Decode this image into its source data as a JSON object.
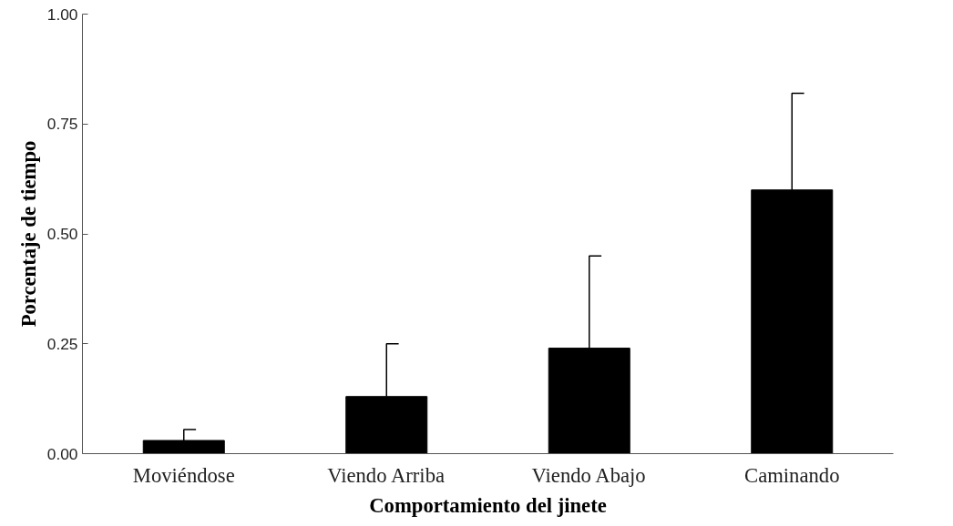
{
  "chart_data": {
    "type": "bar",
    "xlabel": "Comportamiento del jinete",
    "ylabel": "Porcentaje de tiempo",
    "categories": [
      "Moviéndose",
      "Viendo Arriba",
      "Viendo Abajo",
      "Caminando"
    ],
    "values": [
      0.03,
      0.13,
      0.24,
      0.6
    ],
    "errors": [
      [
        0.03,
        0.055
      ],
      [
        0.13,
        0.25
      ],
      [
        0.24,
        0.45
      ],
      [
        0.6,
        0.82
      ]
    ],
    "color": "#000000",
    "ylim": [
      0,
      1
    ],
    "yticks": [
      {
        "value": 0,
        "label": "0.00"
      },
      {
        "value": 0.25,
        "label": "0.25"
      },
      {
        "value": 0.5,
        "label": "0.50"
      },
      {
        "value": 0.75,
        "label": "0.75"
      },
      {
        "value": 1,
        "label": "1.00"
      }
    ],
    "grid": false
  }
}
